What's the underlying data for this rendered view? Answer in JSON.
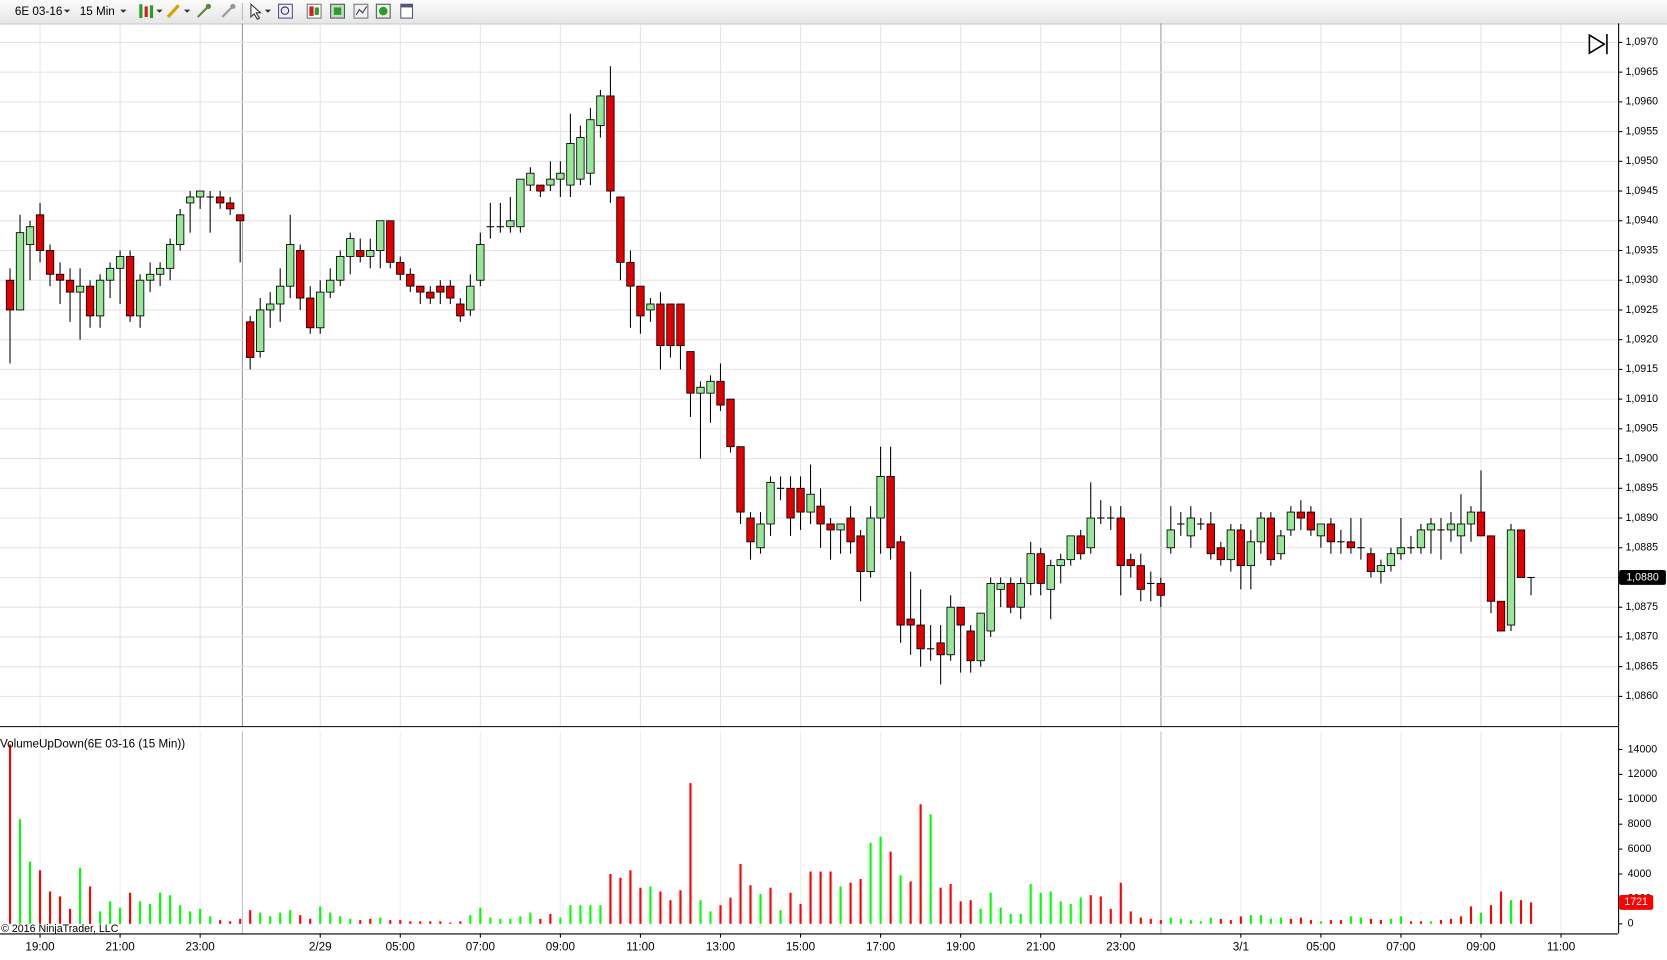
{
  "toolbar": {
    "instrument": "6E 03-16",
    "interval": "15 Min"
  },
  "indicator_label": "VolumeUpDown(6E 03-16 (15 Min))",
  "copyright": "© 2016 NinjaTrader, LLC",
  "chart_data": [
    {
      "type": "candlestick",
      "up_color": "#98e698",
      "down_color": "#e00000",
      "grid": true,
      "xlim": [
        -1,
        160.7
      ],
      "ylim": [
        1.0855,
        1.09732
      ],
      "yticks": [
        {
          "value": 1.086,
          "label": "1,0860"
        },
        {
          "value": 1.0865,
          "label": "1,0865"
        },
        {
          "value": 1.087,
          "label": "1,0870"
        },
        {
          "value": 1.0875,
          "label": "1,0875"
        },
        {
          "value": 1.088,
          "label": "1,0880"
        },
        {
          "value": 1.0885,
          "label": "1,0885"
        },
        {
          "value": 1.089,
          "label": "1,0890"
        },
        {
          "value": 1.0895,
          "label": "1,0895"
        },
        {
          "value": 1.09,
          "label": "1,0900"
        },
        {
          "value": 1.0905,
          "label": "1,0905"
        },
        {
          "value": 1.091,
          "label": "1,0910"
        },
        {
          "value": 1.0915,
          "label": "1,0915"
        },
        {
          "value": 1.092,
          "label": "1,0920"
        },
        {
          "value": 1.0925,
          "label": "1,0925"
        },
        {
          "value": 1.093,
          "label": "1,0930"
        },
        {
          "value": 1.0935,
          "label": "1,0935"
        },
        {
          "value": 1.094,
          "label": "1,0940"
        },
        {
          "value": 1.0945,
          "label": "1,0945"
        },
        {
          "value": 1.095,
          "label": "1,0950"
        },
        {
          "value": 1.0955,
          "label": "1,0955"
        },
        {
          "value": 1.096,
          "label": "1,0960"
        },
        {
          "value": 1.0965,
          "label": "1,0965"
        },
        {
          "value": 1.097,
          "label": "1,0970"
        }
      ],
      "last_price": {
        "value": 1.088,
        "label": "1,0880"
      },
      "open": [
        1.093,
        1.0925,
        1.0936,
        1.0941,
        1.0935,
        1.0931,
        1.093,
        1.0928,
        1.0929,
        1.0924,
        1.093,
        1.0932,
        1.0934,
        1.0924,
        1.093,
        1.0931,
        1.0932,
        1.0936,
        1.0943,
        1.0944,
        1.0944,
        1.0944,
        1.0943,
        1.0941,
        1.0923,
        1.0918,
        1.0925,
        1.0926,
        1.0929,
        1.0935,
        1.0927,
        1.0922,
        1.0928,
        1.093,
        1.0934,
        1.0935,
        1.0934,
        1.0935,
        1.094,
        1.0933,
        1.0931,
        1.0929,
        1.0928,
        1.0929,
        1.0929,
        1.0926,
        1.0925,
        1.093,
        1.0939,
        1.0939,
        1.0939,
        1.0939,
        1.0946,
        1.0946,
        1.0946,
        1.0947,
        1.0946,
        1.0947,
        1.0948,
        1.0956,
        1.0961,
        1.0944,
        1.0933,
        1.0929,
        1.0925,
        1.0926,
        1.0926,
        1.0926,
        1.0918,
        1.0911,
        1.0911,
        1.0913,
        1.091,
        1.0902,
        1.089,
        1.0885,
        1.0889,
        1.0895,
        1.0895,
        1.0895,
        1.0891,
        1.0892,
        1.0889,
        1.0888,
        1.089,
        1.0887,
        1.0881,
        1.089,
        1.0897,
        1.0886,
        1.0873,
        1.0872,
        1.0868,
        1.0869,
        1.0867,
        1.0875,
        1.0871,
        1.0866,
        1.0871,
        1.0878,
        1.0879,
        1.0875,
        1.0879,
        1.0884,
        1.0878,
        1.0882,
        1.0883,
        1.0887,
        1.0885,
        1.089,
        1.089,
        1.089,
        1.0883,
        1.0882,
        1.0879,
        1.0879,
        1.0885,
        1.0889,
        1.0887,
        1.0889,
        1.0889,
        1.0885,
        1.0883,
        1.0888,
        1.0882,
        1.0886,
        1.089,
        1.0884,
        1.0888,
        1.0891,
        1.0891,
        1.0887,
        1.0889,
        1.0886,
        1.0886,
        1.0885,
        1.0884,
        1.0881,
        1.0882,
        1.0884,
        1.0885,
        1.0885,
        1.0888,
        1.0888,
        1.0888,
        1.0887,
        1.0889,
        1.0891,
        1.0887,
        1.0876,
        1.0872,
        1.0888,
        1.088
      ],
      "high": [
        1.0932,
        1.0941,
        1.094,
        1.0943,
        1.0936,
        1.0933,
        1.0932,
        1.0932,
        1.093,
        1.0931,
        1.0933,
        1.0935,
        1.0935,
        1.0931,
        1.0933,
        1.0933,
        1.0937,
        1.0942,
        1.0945,
        1.0945,
        1.0945,
        1.0945,
        1.0944,
        1.0941,
        1.0924,
        1.0927,
        1.0928,
        1.0932,
        1.0941,
        1.0936,
        1.0929,
        1.093,
        1.0932,
        1.0935,
        1.0938,
        1.0937,
        1.0937,
        1.094,
        1.094,
        1.0934,
        1.0932,
        1.0929,
        1.0929,
        1.093,
        1.093,
        1.0927,
        1.0931,
        1.0938,
        1.0943,
        1.0943,
        1.0944,
        1.0947,
        1.0949,
        1.0946,
        1.095,
        1.095,
        1.0958,
        1.0956,
        1.0959,
        1.0962,
        1.0966,
        1.0944,
        1.0935,
        1.0929,
        1.0927,
        1.0928,
        1.0926,
        1.0926,
        1.0918,
        1.0913,
        1.0914,
        1.0916,
        1.091,
        1.0902,
        1.0891,
        1.0891,
        1.0897,
        1.0897,
        1.0897,
        1.0897,
        1.0899,
        1.0895,
        1.089,
        1.0889,
        1.0892,
        1.0888,
        1.0892,
        1.0902,
        1.0902,
        1.0887,
        1.0881,
        1.0878,
        1.0872,
        1.0872,
        1.0877,
        1.0875,
        1.0872,
        1.0874,
        1.088,
        1.088,
        1.088,
        1.088,
        1.0886,
        1.0885,
        1.0883,
        1.0884,
        1.0887,
        1.0888,
        1.0896,
        1.0893,
        1.0892,
        1.0892,
        1.0884,
        1.0884,
        1.0881,
        1.088,
        1.0892,
        1.0891,
        1.0892,
        1.089,
        1.0891,
        1.0886,
        1.0889,
        1.0889,
        1.0888,
        1.0891,
        1.0891,
        1.0888,
        1.0892,
        1.0893,
        1.0892,
        1.0889,
        1.089,
        1.0888,
        1.089,
        1.089,
        1.0885,
        1.0883,
        1.0885,
        1.089,
        1.0887,
        1.0889,
        1.089,
        1.089,
        1.0891,
        1.0894,
        1.0892,
        1.0898,
        1.0887,
        1.0876,
        1.0889,
        1.0888,
        1.088
      ],
      "low": [
        1.0916,
        1.0925,
        1.093,
        1.0933,
        1.0929,
        1.0926,
        1.0923,
        1.092,
        1.0922,
        1.0922,
        1.0927,
        1.0926,
        1.0923,
        1.0922,
        1.0928,
        1.0929,
        1.093,
        1.0935,
        1.0938,
        1.0942,
        1.0938,
        1.0942,
        1.0941,
        1.0933,
        1.0915,
        1.0917,
        1.0922,
        1.0923,
        1.0927,
        1.0925,
        1.0921,
        1.0921,
        1.0927,
        1.0929,
        1.0931,
        1.0933,
        1.0932,
        1.0932,
        1.0932,
        1.093,
        1.0928,
        1.0926,
        1.0926,
        1.0926,
        1.0926,
        1.0923,
        1.0924,
        1.0929,
        1.0937,
        1.0938,
        1.0938,
        1.0938,
        1.0945,
        1.0944,
        1.0945,
        1.0944,
        1.0944,
        1.0946,
        1.0946,
        1.0954,
        1.0943,
        1.093,
        1.0922,
        1.0921,
        1.0923,
        1.0915,
        1.0917,
        1.0915,
        1.0907,
        1.09,
        1.0906,
        1.0908,
        1.0901,
        1.0889,
        1.0883,
        1.0884,
        1.0887,
        1.0893,
        1.0887,
        1.0888,
        1.0889,
        1.0885,
        1.0883,
        1.0884,
        1.0884,
        1.0876,
        1.088,
        1.0884,
        1.0883,
        1.0869,
        1.0867,
        1.0865,
        1.0866,
        1.0862,
        1.0866,
        1.0864,
        1.0864,
        1.0865,
        1.087,
        1.0875,
        1.0874,
        1.0873,
        1.0877,
        1.0877,
        1.0873,
        1.0879,
        1.0882,
        1.0883,
        1.0884,
        1.0889,
        1.0888,
        1.0877,
        1.088,
        1.0876,
        1.0876,
        1.0875,
        1.0884,
        1.0887,
        1.0885,
        1.0888,
        1.0883,
        1.0882,
        1.0881,
        1.0878,
        1.0878,
        1.0884,
        1.0882,
        1.0883,
        1.0887,
        1.0888,
        1.0887,
        1.0885,
        1.0884,
        1.0884,
        1.0884,
        1.0883,
        1.088,
        1.0879,
        1.0881,
        1.0883,
        1.0884,
        1.0884,
        1.0884,
        1.0883,
        1.0886,
        1.0884,
        1.0886,
        1.0887,
        1.0874,
        1.0871,
        1.0871,
        1.088,
        1.0877
      ],
      "close": [
        1.0925,
        1.0938,
        1.0939,
        1.0935,
        1.0931,
        1.093,
        1.0928,
        1.0929,
        1.0924,
        1.093,
        1.0932,
        1.0934,
        1.0924,
        1.093,
        1.0931,
        1.0932,
        1.0936,
        1.0941,
        1.0944,
        1.0945,
        1.0944,
        1.0943,
        1.0942,
        1.094,
        1.0917,
        1.0925,
        1.0926,
        1.0929,
        1.0936,
        1.0927,
        1.0922,
        1.0928,
        1.093,
        1.0934,
        1.0937,
        1.0934,
        1.0935,
        1.094,
        1.0933,
        1.0931,
        1.0929,
        1.0928,
        1.0927,
        1.0928,
        1.0927,
        1.0924,
        1.0929,
        1.0936,
        1.0939,
        1.0939,
        1.094,
        1.0947,
        1.0948,
        1.0945,
        1.0947,
        1.0948,
        1.0953,
        1.0954,
        1.0957,
        1.0961,
        1.0945,
        1.0933,
        1.0929,
        1.0924,
        1.0926,
        1.0919,
        1.0919,
        1.0919,
        1.0911,
        1.0912,
        1.0913,
        1.0909,
        1.0902,
        1.0891,
        1.0886,
        1.0889,
        1.0896,
        1.0895,
        1.089,
        1.0891,
        1.0894,
        1.0889,
        1.0888,
        1.0889,
        1.0886,
        1.0881,
        1.089,
        1.0897,
        1.0885,
        1.0872,
        1.0872,
        1.0868,
        1.0868,
        1.0867,
        1.0875,
        1.0872,
        1.0866,
        1.0874,
        1.0879,
        1.0879,
        1.0875,
        1.0879,
        1.0884,
        1.0879,
        1.0882,
        1.0883,
        1.0887,
        1.0884,
        1.089,
        1.089,
        1.089,
        1.0882,
        1.0882,
        1.0878,
        1.0879,
        1.0877,
        1.0888,
        1.0889,
        1.089,
        1.0889,
        1.0884,
        1.0883,
        1.0888,
        1.0882,
        1.0886,
        1.089,
        1.0883,
        1.0887,
        1.0891,
        1.089,
        1.0888,
        1.0889,
        1.0886,
        1.0886,
        1.0885,
        1.0885,
        1.0881,
        1.0882,
        1.0884,
        1.0885,
        1.0885,
        1.0888,
        1.0889,
        1.0888,
        1.0889,
        1.0889,
        1.0891,
        1.0887,
        1.0876,
        1.0871,
        1.0888,
        1.088,
        1.088
      ]
    },
    {
      "type": "bar",
      "xlim": [
        -1,
        160.7
      ],
      "ylim": [
        -770,
        15450
      ],
      "yticks": [
        0,
        2000,
        4000,
        6000,
        8000,
        10000,
        12000,
        14000
      ],
      "xticks": [
        {
          "value": 3,
          "label": "19:00"
        },
        {
          "value": 11,
          "label": "21:00"
        },
        {
          "value": 19,
          "label": "23:00"
        },
        {
          "value": 31,
          "label": "2/29"
        },
        {
          "value": 39,
          "label": "05:00"
        },
        {
          "value": 47,
          "label": "07:00"
        },
        {
          "value": 55,
          "label": "09:00"
        },
        {
          "value": 63,
          "label": "11:00"
        },
        {
          "value": 71,
          "label": "13:00"
        },
        {
          "value": 79,
          "label": "15:00"
        },
        {
          "value": 87,
          "label": "17:00"
        },
        {
          "value": 95,
          "label": "19:00"
        },
        {
          "value": 103,
          "label": "21:00"
        },
        {
          "value": 111,
          "label": "23:00"
        },
        {
          "value": 123,
          "label": "3/1"
        },
        {
          "value": 131,
          "label": "05:00"
        },
        {
          "value": 139,
          "label": "07:00"
        },
        {
          "value": 147,
          "label": "09:00"
        },
        {
          "value": 155,
          "label": "11:00"
        }
      ],
      "values": [
        14400,
        8400,
        5000,
        4300,
        2600,
        2200,
        1200,
        4500,
        3000,
        1000,
        1800,
        1300,
        2500,
        1800,
        1600,
        2500,
        2300,
        1500,
        1000,
        1200,
        600,
        300,
        200,
        400,
        1100,
        900,
        600,
        900,
        1100,
        700,
        400,
        1400,
        900,
        600,
        400,
        300,
        400,
        500,
        300,
        300,
        200,
        200,
        200,
        200,
        100,
        200,
        700,
        1300,
        500,
        400,
        400,
        600,
        900,
        400,
        800,
        500,
        1500,
        1500,
        1500,
        1500,
        4000,
        3700,
        4300,
        2900,
        3000,
        2600,
        1900,
        2700,
        11300,
        1900,
        1000,
        1500,
        2100,
        4800,
        3100,
        2400,
        2900,
        1100,
        2500,
        1600,
        4200,
        4200,
        4200,
        3000,
        3300,
        3600,
        6500,
        7000,
        5800,
        3900,
        3400,
        9600,
        8800,
        2900,
        3200,
        1800,
        1900,
        1200,
        2500,
        1300,
        800,
        800,
        3200,
        2500,
        2600,
        1800,
        1600,
        2100,
        2300,
        2200,
        1200,
        3300,
        1000,
        500,
        400,
        300,
        500,
        400,
        300,
        200,
        500,
        400,
        300,
        600,
        700,
        700,
        400,
        500,
        400,
        500,
        300,
        200,
        300,
        300,
        600,
        500,
        400,
        300,
        400,
        600,
        200,
        200,
        200,
        300,
        400,
        600,
        1400,
        900,
        1500,
        2600,
        1900,
        1900,
        1721
      ],
      "colors": [
        "red",
        "lime",
        "lime",
        "red",
        "red",
        "red",
        "red",
        "lime",
        "red",
        "lime",
        "lime",
        "lime",
        "red",
        "lime",
        "lime",
        "lime",
        "lime",
        "lime",
        "lime",
        "lime",
        "lime",
        "red",
        "red",
        "red",
        "red",
        "lime",
        "lime",
        "lime",
        "lime",
        "red",
        "red",
        "lime",
        "lime",
        "lime",
        "lime",
        "red",
        "red",
        "lime",
        "red",
        "red",
        "red",
        "red",
        "red",
        "red",
        "red",
        "red",
        "lime",
        "lime",
        "lime",
        "lime",
        "lime",
        "lime",
        "lime",
        "red",
        "red",
        "lime",
        "lime",
        "lime",
        "lime",
        "lime",
        "red",
        "red",
        "red",
        "red",
        "lime",
        "red",
        "red",
        "red",
        "red",
        "lime",
        "lime",
        "red",
        "red",
        "red",
        "red",
        "lime",
        "red",
        "lime",
        "red",
        "red",
        "red",
        "red",
        "red",
        "lime",
        "red",
        "red",
        "lime",
        "lime",
        "red",
        "lime",
        "red",
        "red",
        "lime",
        "red",
        "red",
        "red",
        "red",
        "lime",
        "lime",
        "lime",
        "lime",
        "lime",
        "lime",
        "lime",
        "lime",
        "lime",
        "lime",
        "lime",
        "red",
        "red",
        "red",
        "red",
        "red",
        "red",
        "red",
        "red",
        "lime",
        "lime",
        "lime",
        "lime",
        "lime",
        "red",
        "red",
        "red",
        "lime",
        "lime",
        "lime",
        "lime",
        "red",
        "red",
        "red",
        "lime",
        "red",
        "red",
        "lime",
        "lime",
        "red",
        "red",
        "lime",
        "lime",
        "red",
        "red",
        "lime",
        "red",
        "red",
        "red",
        "red",
        "lime",
        "red",
        "red",
        "lime",
        "red",
        "red"
      ]
    }
  ]
}
